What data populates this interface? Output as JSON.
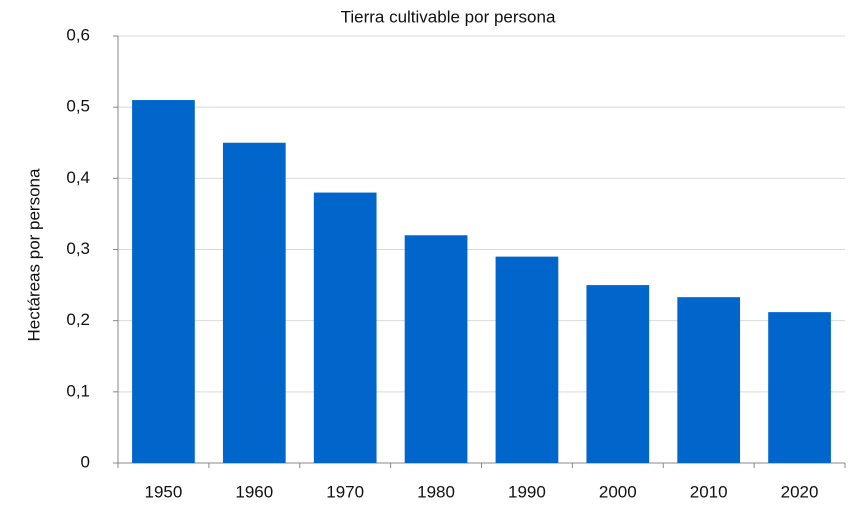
{
  "chart_data": {
    "type": "bar",
    "title": "Tierra cultivable por persona",
    "y_label": "Hectáreas por persona",
    "categories": [
      "1950",
      "1960",
      "1970",
      "1980",
      "1990",
      "2000",
      "2010",
      "2020"
    ],
    "values": [
      0.51,
      0.45,
      0.38,
      0.32,
      0.29,
      0.25,
      0.233,
      0.212
    ],
    "color": "#0066cc",
    "ylim": [
      0,
      0.6
    ],
    "yticks": [
      0,
      {
        "value": 0.1,
        "label": "0,1"
      },
      {
        "value": 0.2,
        "label": "0,2"
      },
      {
        "value": 0.3,
        "label": "0,3"
      },
      {
        "value": 0.4,
        "label": "0,4"
      },
      {
        "value": 0.5,
        "label": "0,5"
      },
      {
        "value": 0.6,
        "label": "0,6"
      }
    ],
    "grid": true
  }
}
